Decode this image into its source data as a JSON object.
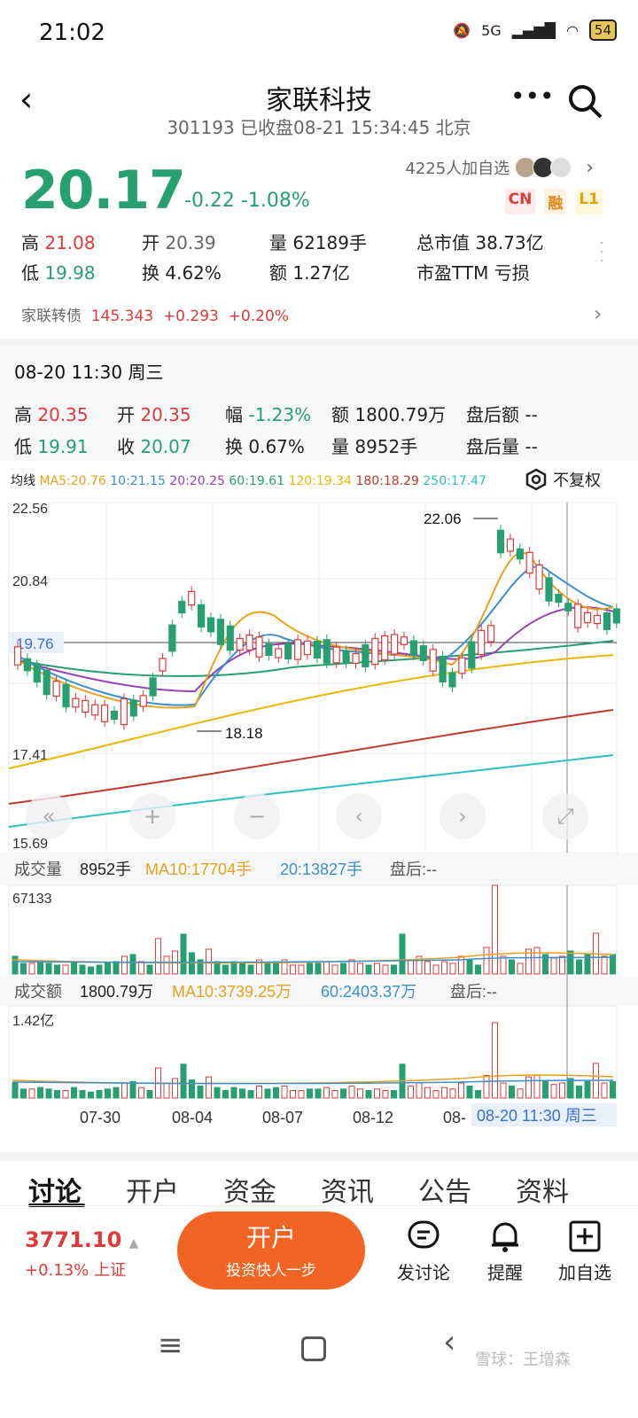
{
  "status": {
    "time": "21:02",
    "network": "5G",
    "battery": "54"
  },
  "header": {
    "title": "家联科技",
    "subtitle": "301193 已收盘08-21 15:34:45 北京"
  },
  "quote": {
    "price": "20.17",
    "change": "-0.22 -1.08%",
    "watch_count": "4225人加自选",
    "tags": [
      "CN",
      "融",
      "L1"
    ]
  },
  "stats": {
    "high_label": "高",
    "high": "21.08",
    "open_label": "开",
    "open": "20.39",
    "vol_label": "量",
    "vol": "62189手",
    "cap_label": "总市值",
    "cap": "38.73亿",
    "low_label": "低",
    "low": "19.98",
    "turn_label": "换",
    "turn": "4.62%",
    "amt_label": "额",
    "amt": "1.27亿",
    "pe_label": "市盈TTM",
    "pe": "亏损"
  },
  "bond": {
    "name": "家联转债",
    "price": "145.343",
    "change": "+0.293",
    "pct": "+0.20%"
  },
  "kpanel": {
    "date": "08-20 11:30 周三",
    "h_label": "高",
    "h": "20.35",
    "o_label": "开",
    "o": "20.35",
    "f_label": "幅",
    "f": "-1.23%",
    "e_label": "额",
    "e": "1800.79万",
    "ae_label": "盘后额",
    "ae": "--",
    "l_label": "低",
    "l": "19.91",
    "c_label": "收",
    "c": "20.07",
    "t_label": "换",
    "t": "0.67%",
    "v_label": "量",
    "v": "8952手",
    "av_label": "盘后量",
    "av": "--"
  },
  "ma_legend": {
    "label": "均线",
    "items": [
      {
        "text": "MA5:20.76",
        "color": "#e8a11c"
      },
      {
        "text": "10:21.15",
        "color": "#3a8fd0"
      },
      {
        "text": "20:20.25",
        "color": "#9b3fb5"
      },
      {
        "text": "60:19.61",
        "color": "#27a071"
      },
      {
        "text": "120:19.34",
        "color": "#e8b800"
      },
      {
        "text": "180:18.29",
        "color": "#c0392b"
      },
      {
        "text": "250:17.47",
        "color": "#2bbfc4"
      }
    ],
    "adjust": "不复权"
  },
  "chart_data": {
    "type": "candlestick",
    "price_axis": [
      "22.56",
      "20.84",
      "19.76",
      "17.41",
      "15.69"
    ],
    "annotations": {
      "high": "22.06",
      "low": "18.18",
      "crosshair_price": "19.76"
    },
    "volume_title": "成交量",
    "volume_value": "8952手",
    "volume_ma10": "MA10:17704手",
    "volume_ma20": "20:13827手",
    "volume_after": "盘后:--",
    "volume_max": "67133",
    "amount_title": "成交额",
    "amount_value": "1800.79万",
    "amount_ma10": "MA10:3739.25万",
    "amount_ma60": "60:2403.37万",
    "amount_after": "盘后:--",
    "amount_max": "1.42亿",
    "dates": [
      "07-30",
      "08-04",
      "08-07",
      "08-12",
      "08-"
    ],
    "cursor_date": "08-20 11:30 周三"
  },
  "tabs": [
    "讨论",
    "开户",
    "资金",
    "资讯",
    "公告",
    "资料"
  ],
  "bottom": {
    "index": "3771.10",
    "index_change": "+0.13% 上证",
    "open_btn": "开户",
    "open_sub": "投资快人一步",
    "discuss": "发讨论",
    "remind": "提醒",
    "add": "加自选"
  },
  "watermark": "雪球：王增森"
}
